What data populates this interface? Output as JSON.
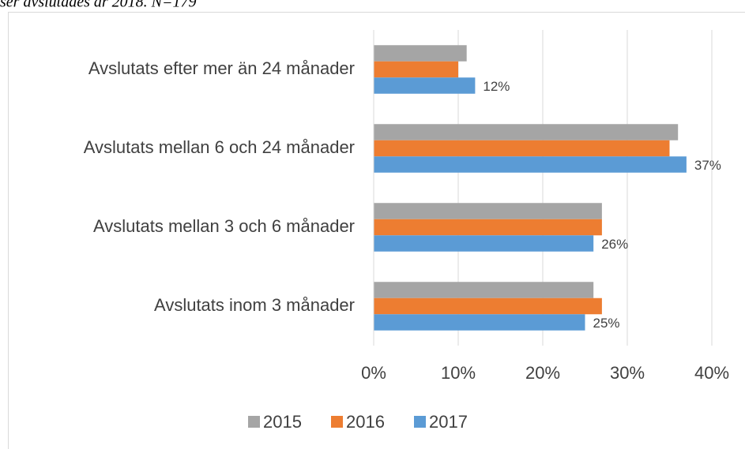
{
  "chart_data": {
    "type": "barh",
    "caption": "ser avslutades år 2018. N=179",
    "categories": [
      "Avslutats efter mer än 24 månader",
      "Avslutats mellan 6 och 24 månader",
      "Avslutats mellan 3 och 6 månader",
      "Avslutats inom 3 månader"
    ],
    "series": [
      {
        "name": "2015",
        "color": "#a5a5a5",
        "values": [
          11,
          36,
          27,
          26
        ]
      },
      {
        "name": "2016",
        "color": "#ed7d31",
        "values": [
          10,
          35,
          27,
          27
        ]
      },
      {
        "name": "2017",
        "color": "#5b9bd5",
        "values": [
          12,
          37,
          26,
          25
        ],
        "value_labels": [
          "12%",
          "37%",
          "26%",
          "25%"
        ]
      }
    ],
    "xlim": [
      0,
      40
    ],
    "xticks": [
      {
        "value": 0,
        "label": "0%"
      },
      {
        "value": 10,
        "label": "10%"
      },
      {
        "value": 20,
        "label": "20%"
      },
      {
        "value": 30,
        "label": "30%"
      },
      {
        "value": 40,
        "label": "40%"
      }
    ],
    "grid": true,
    "legend": "bottom"
  }
}
